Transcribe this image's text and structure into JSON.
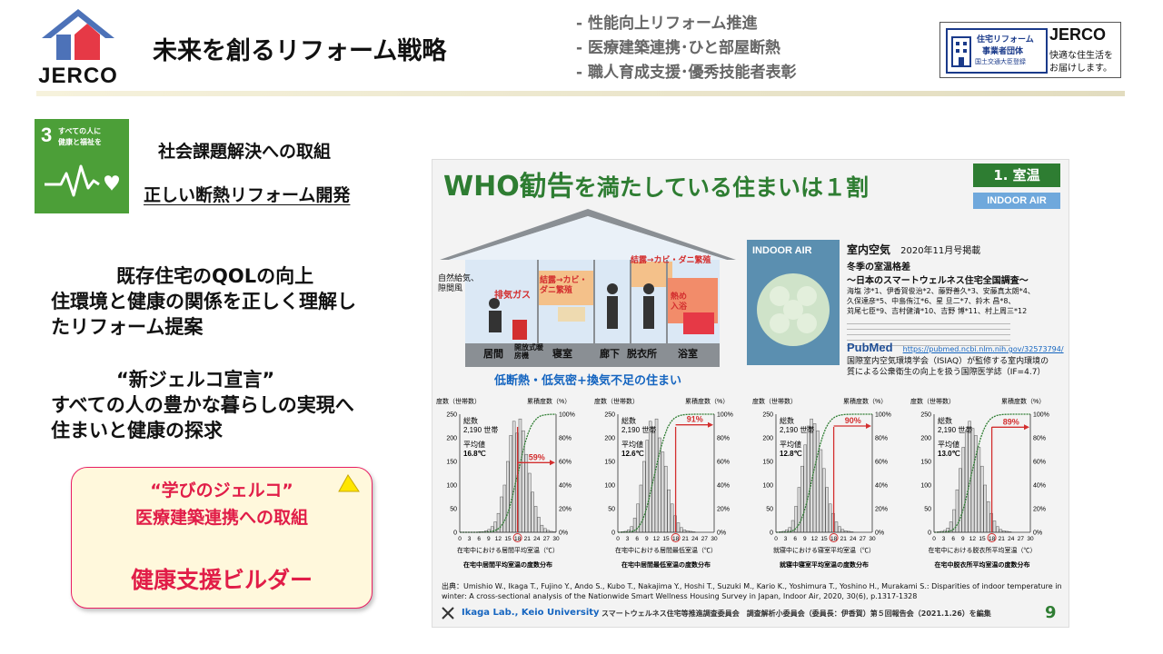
{
  "header": {
    "logo_text": "JERCO",
    "title": "未来を創るリフォーム戦略",
    "bullets": [
      "- 性能向上リフォーム推進",
      "- 医療建築連携･ひと部屋断熱",
      "- 職人育成支援･優秀技能者表彰"
    ],
    "badge_line1": "住宅リフォーム",
    "badge_line2": "事業者団体",
    "badge_line3": "国土交通大臣登録",
    "badge_brand": "JERCO",
    "badge_tagline1": "快適な住生活を",
    "badge_tagline2": "お届けします。"
  },
  "sdg": {
    "number": "3",
    "text1": "すべての人に",
    "text2": "健康と福祉を"
  },
  "left": {
    "heading": "社会課題解決への取組",
    "subheading": "正しい断熱リフォーム開発",
    "para1": [
      "既存住宅のQOLの向上",
      "住環境と健康の関係を正しく理解し",
      "たリフォーム提案"
    ],
    "para2": [
      "“新ジェルコ宣言”",
      "すべての人の豊かな暮らしの実現へ",
      "住まいと健康の探求"
    ],
    "box_line1": "“学びのジェルコ”",
    "box_line2": "医療建築連携への取組",
    "box_line3": "健康支援ビルダー"
  },
  "slide": {
    "title_a": "WHO勧告",
    "title_b": "を満たしている住まいは１割",
    "tag": "1. 室温",
    "tag2": "INDOOR AIR",
    "house_caption": "低断熱・低気密+換気不足の住まい",
    "rooms": [
      "居間",
      "開放式暖房機",
      "寝室",
      "廊下",
      "脱衣所",
      "浴室"
    ],
    "house_labels": [
      "自然給気、隙間風",
      "排気ガス",
      "結露→カビ・ダニ繁殖",
      "結露→カビ・ダニ繁殖",
      "熱め入浴"
    ],
    "journal_cover": "INDOOR AIR",
    "journal_name": "室内空気",
    "journal_date": "2020年11月号掲載",
    "article_title": "冬季の室温格差",
    "article_sub": "～日本のスマートウェルネス住宅全国調査～",
    "authors1": "海塩 渉*1、伊香賀俊治*2、藤野善久*3、安藤真太朗*4、",
    "authors2": "久保達彦*5、中島侑江*6、星 旦二*7、鈴木 昌*8、",
    "authors3": "苅尾七臣*9、吉村健清*10、吉野 博*11、村上周三*12",
    "pubmed": "PubMed",
    "pubmed_url": "https://pubmed.ncbi.nlm.nih.gov/32573794/",
    "isiaq1": "国際室内空気環境学会（ISIAQ）が監修する室内環境の",
    "isiaq2": "質による公衆衛生の向上を扱う国際医学誌（IF=4.7）",
    "citation": "出典：Umishio W., Ikaga T., Fujino Y., Ando S., Kubo T., Nakajima Y., Hoshi T., Suzuki M., Kario K., Yoshimura T., Yoshino H., Murakami S.: Disparities of indoor temperature in winter: A cross-sectional analysis of the Nationwide Smart Wellness Housing Survey in Japan, Indoor Air, 2020, 30(6), p.1317-1328",
    "footer_lab": "Ikaga Lab., Keio University",
    "footer_text": "スマートウェルネス住宅等推進調査委員会　調査解析小委員会（委員長：伊香賀）第５回報告会（2021.1.26）を編集",
    "page_number": "9"
  },
  "chart_data": [
    {
      "type": "bar",
      "title": "在宅中居間平均室温の度数分布",
      "xlabel": "在宅中における居間平均室温（℃）",
      "ylabel": "度数（世帯数）",
      "y2label": "累積度数（%）",
      "total_label": "総数",
      "total": "2,190 世帯",
      "mean_label": "平均値",
      "mean": "16.8℃",
      "percent": "59%",
      "ylim": [
        0,
        250
      ],
      "y2lim": [
        0,
        100
      ],
      "yticks": [
        0,
        50,
        100,
        150,
        200,
        250
      ],
      "y2ticks": [
        "0%",
        "20%",
        "40%",
        "60%",
        "80%",
        "100%"
      ],
      "xticks": [
        "0",
        "3",
        "6",
        "9",
        "12",
        "15",
        "18",
        "21",
        "24",
        "27",
        "30"
      ],
      "marker": 18,
      "values": [
        0,
        0,
        0,
        0,
        0,
        0,
        1,
        1,
        3,
        6,
        12,
        22,
        40,
        75,
        100,
        150,
        205,
        235,
        210,
        240,
        215,
        165,
        125,
        85,
        55,
        32,
        15,
        8,
        4,
        2,
        1
      ]
    },
    {
      "type": "bar",
      "title": "在宅中居間最低室温の度数分布",
      "xlabel": "在宅中における居間最低室温（℃）",
      "ylabel": "度数（世帯数）",
      "y2label": "累積度数（%）",
      "total_label": "総数",
      "total": "2,190 世帯",
      "mean_label": "平均値",
      "mean": "12.6℃",
      "percent": "91%",
      "ylim": [
        0,
        250
      ],
      "y2lim": [
        0,
        100
      ],
      "yticks": [
        0,
        50,
        100,
        150,
        200,
        250
      ],
      "y2ticks": [
        "0%",
        "20%",
        "40%",
        "60%",
        "80%",
        "100%"
      ],
      "xticks": [
        "0",
        "3",
        "6",
        "9",
        "12",
        "15",
        "18",
        "21",
        "24",
        "27",
        "30"
      ],
      "marker": 18,
      "values": [
        0,
        1,
        2,
        5,
        12,
        30,
        60,
        100,
        150,
        195,
        235,
        215,
        240,
        200,
        170,
        140,
        90,
        60,
        35,
        20,
        10,
        5,
        3,
        2,
        1,
        0,
        0,
        0,
        0,
        0,
        0
      ]
    },
    {
      "type": "bar",
      "title": "就寝中寝室平均室温の度数分布",
      "xlabel": "就寝中における寝室平均室温（℃）",
      "ylabel": "度数（世帯数）",
      "y2label": "累積度数（%）",
      "total_label": "総数",
      "total": "2,190 世帯",
      "mean_label": "平均値",
      "mean": "12.8℃",
      "percent": "90%",
      "ylim": [
        0,
        250
      ],
      "y2lim": [
        0,
        100
      ],
      "yticks": [
        0,
        50,
        100,
        150,
        200,
        250
      ],
      "y2ticks": [
        "0%",
        "20%",
        "40%",
        "60%",
        "80%",
        "100%"
      ],
      "xticks": [
        "0",
        "3",
        "6",
        "9",
        "12",
        "15",
        "18",
        "21",
        "24",
        "27",
        "30"
      ],
      "marker": 18,
      "values": [
        0,
        1,
        2,
        5,
        10,
        25,
        55,
        95,
        140,
        185,
        225,
        240,
        230,
        215,
        175,
        135,
        95,
        60,
        40,
        22,
        12,
        6,
        3,
        2,
        1,
        0,
        0,
        0,
        0,
        0,
        0
      ]
    },
    {
      "type": "bar",
      "title": "在宅中脱衣所平均室温の度数分布",
      "xlabel": "在宅中における脱衣所平均室温（℃）",
      "ylabel": "度数（世帯数）",
      "y2label": "累積度数（%）",
      "total_label": "総数",
      "total": "2,190 世帯",
      "mean_label": "平均値",
      "mean": "13.0℃",
      "percent": "89%",
      "ylim": [
        0,
        250
      ],
      "y2lim": [
        0,
        100
      ],
      "yticks": [
        0,
        50,
        100,
        150,
        200,
        250
      ],
      "y2ticks": [
        "0%",
        "20%",
        "40%",
        "60%",
        "80%",
        "100%"
      ],
      "xticks": [
        "0",
        "3",
        "6",
        "9",
        "12",
        "15",
        "18",
        "21",
        "24",
        "27",
        "30"
      ],
      "marker": 18,
      "values": [
        0,
        1,
        2,
        4,
        9,
        22,
        48,
        90,
        135,
        180,
        215,
        235,
        220,
        205,
        180,
        140,
        100,
        65,
        40,
        24,
        12,
        6,
        3,
        2,
        1,
        0,
        0,
        0,
        0,
        0,
        0
      ]
    }
  ],
  "colors": {
    "sdg_green": "#4c9f38",
    "slide_green": "#2e7d32",
    "accent_red": "#d32f2f",
    "house_roof": "#8a8f94",
    "box_border": "#e91e63",
    "box_text": "#e11d48",
    "box_fill": "#fff8dc"
  }
}
